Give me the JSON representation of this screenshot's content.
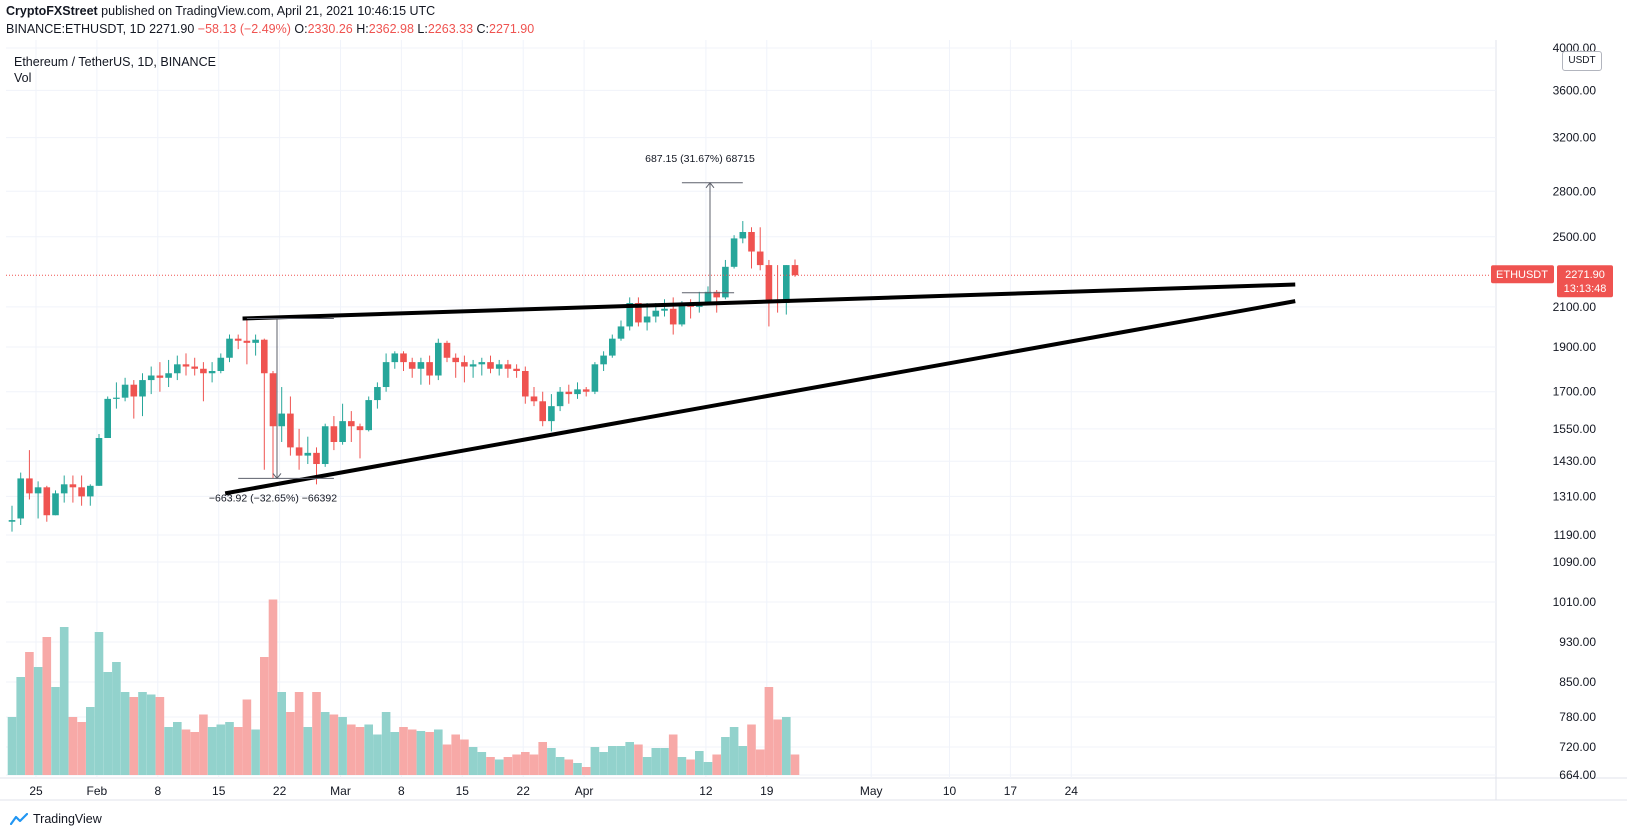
{
  "header": {
    "publisher": "CryptoFXStreet",
    "published_text": "published on TradingView.com, April 21, 2021 10:46:15 UTC",
    "symbol_line": "BINANCE:ETHUSDT, 1D",
    "last": "2271.90",
    "change": "−58.13 (−2.49%)",
    "o_label": "O:",
    "o": "2330.26",
    "h_label": "H:",
    "h": "2362.98",
    "l_label": "L:",
    "l": "2263.33",
    "c_label": "C:",
    "c": "2271.90"
  },
  "legend": {
    "title": "Ethereum / TetherUS, 1D, BINANCE",
    "volume_label": "Vol"
  },
  "currency_badge": "USDT",
  "price_tag": {
    "symbol": "ETHUSDT",
    "price": "2271.90",
    "countdown": "13:13:48"
  },
  "footer": {
    "brand": "TradingView"
  },
  "colors": {
    "up": "#26a69a",
    "down": "#ef5350",
    "vol_up": "#92d2cc",
    "vol_down": "#f7a9a7",
    "trendline": "#000000",
    "grid": "#f0f3fa"
  },
  "chart_data": {
    "type": "candlestick",
    "title": "Ethereum / TetherUS, 1D, BINANCE",
    "scale": "log",
    "price_axis_ticks": [
      664,
      720,
      780,
      850,
      930,
      1010,
      1090,
      1190,
      1310,
      1430,
      1550,
      1700,
      1900,
      2100,
      2500,
      2800,
      3200,
      3600,
      4000
    ],
    "price_axis_labels": [
      "664.00",
      "720.00",
      "780.00",
      "850.00",
      "930.00",
      "1010.00",
      "1090.00",
      "1190.00",
      "1310.00",
      "1430.00",
      "1550.00",
      "1700.00",
      "1900.00",
      "2100.00",
      "2500.00",
      "2800.00",
      "3200.00",
      "3600.00",
      "4000.00"
    ],
    "time_axis_labels": [
      "25",
      "Feb",
      "8",
      "15",
      "22",
      "Mar",
      "8",
      "15",
      "22",
      "Apr",
      "12",
      "19",
      "May",
      "10",
      "17",
      "24"
    ],
    "time_axis_indices": [
      0,
      7,
      14,
      21,
      28,
      35,
      42,
      49,
      56,
      63,
      77,
      84,
      96,
      105,
      112,
      119
    ],
    "candles": [
      {
        "date": "2021-01-24",
        "o": 1230,
        "h": 1280,
        "l": 1200,
        "c": 1235,
        "v": 780
      },
      {
        "date": "2021-01-25",
        "o": 1240,
        "h": 1390,
        "l": 1220,
        "c": 1370,
        "v": 860
      },
      {
        "date": "2021-01-26",
        "o": 1370,
        "h": 1470,
        "l": 1300,
        "c": 1320,
        "v": 910
      },
      {
        "date": "2021-01-27",
        "o": 1320,
        "h": 1360,
        "l": 1240,
        "c": 1340,
        "v": 880
      },
      {
        "date": "2021-01-28",
        "o": 1340,
        "h": 1345,
        "l": 1230,
        "c": 1250,
        "v": 940
      },
      {
        "date": "2021-01-29",
        "o": 1250,
        "h": 1330,
        "l": 1250,
        "c": 1320,
        "v": 840
      },
      {
        "date": "2021-01-30",
        "o": 1320,
        "h": 1380,
        "l": 1290,
        "c": 1350,
        "v": 960
      },
      {
        "date": "2021-01-31",
        "o": 1350,
        "h": 1380,
        "l": 1290,
        "c": 1340,
        "v": 780
      },
      {
        "date": "2021-02-01",
        "o": 1340,
        "h": 1380,
        "l": 1280,
        "c": 1310,
        "v": 770
      },
      {
        "date": "2021-02-02",
        "o": 1310,
        "h": 1350,
        "l": 1280,
        "c": 1345,
        "v": 800
      },
      {
        "date": "2021-02-03",
        "o": 1345,
        "h": 1530,
        "l": 1345,
        "c": 1515,
        "v": 950
      },
      {
        "date": "2021-02-04",
        "o": 1515,
        "h": 1680,
        "l": 1515,
        "c": 1670,
        "v": 870
      },
      {
        "date": "2021-02-05",
        "o": 1670,
        "h": 1740,
        "l": 1630,
        "c": 1675,
        "v": 890
      },
      {
        "date": "2021-02-06",
        "o": 1675,
        "h": 1760,
        "l": 1660,
        "c": 1730,
        "v": 830
      },
      {
        "date": "2021-02-07",
        "o": 1730,
        "h": 1750,
        "l": 1590,
        "c": 1680,
        "v": 820
      },
      {
        "date": "2021-02-08",
        "o": 1680,
        "h": 1780,
        "l": 1600,
        "c": 1750,
        "v": 830
      },
      {
        "date": "2021-02-09",
        "o": 1750,
        "h": 1810,
        "l": 1690,
        "c": 1770,
        "v": 825
      },
      {
        "date": "2021-02-10",
        "o": 1770,
        "h": 1830,
        "l": 1700,
        "c": 1760,
        "v": 820
      },
      {
        "date": "2021-02-11",
        "o": 1760,
        "h": 1840,
        "l": 1720,
        "c": 1780,
        "v": 760
      },
      {
        "date": "2021-02-12",
        "o": 1780,
        "h": 1860,
        "l": 1750,
        "c": 1820,
        "v": 770
      },
      {
        "date": "2021-02-13",
        "o": 1820,
        "h": 1870,
        "l": 1770,
        "c": 1810,
        "v": 755
      },
      {
        "date": "2021-02-14",
        "o": 1810,
        "h": 1850,
        "l": 1770,
        "c": 1800,
        "v": 750
      },
      {
        "date": "2021-02-15",
        "o": 1800,
        "h": 1830,
        "l": 1660,
        "c": 1780,
        "v": 785
      },
      {
        "date": "2021-02-16",
        "o": 1780,
        "h": 1830,
        "l": 1740,
        "c": 1790,
        "v": 760
      },
      {
        "date": "2021-02-17",
        "o": 1790,
        "h": 1870,
        "l": 1780,
        "c": 1850,
        "v": 765
      },
      {
        "date": "2021-02-18",
        "o": 1850,
        "h": 1960,
        "l": 1830,
        "c": 1940,
        "v": 770
      },
      {
        "date": "2021-02-19",
        "o": 1940,
        "h": 1960,
        "l": 1890,
        "c": 1930,
        "v": 760
      },
      {
        "date": "2021-02-20",
        "o": 1930,
        "h": 2040,
        "l": 1820,
        "c": 1920,
        "v": 815
      },
      {
        "date": "2021-02-21",
        "o": 1920,
        "h": 1960,
        "l": 1860,
        "c": 1935,
        "v": 755
      },
      {
        "date": "2021-02-22",
        "o": 1935,
        "h": 1940,
        "l": 1400,
        "c": 1780,
        "v": 900
      },
      {
        "date": "2021-02-23",
        "o": 1780,
        "h": 1790,
        "l": 1370,
        "c": 1560,
        "v": 1015
      },
      {
        "date": "2021-02-24",
        "o": 1560,
        "h": 1720,
        "l": 1500,
        "c": 1610,
        "v": 830
      },
      {
        "date": "2021-02-25",
        "o": 1610,
        "h": 1680,
        "l": 1450,
        "c": 1480,
        "v": 790
      },
      {
        "date": "2021-02-26",
        "o": 1480,
        "h": 1550,
        "l": 1400,
        "c": 1450,
        "v": 830
      },
      {
        "date": "2021-02-27",
        "o": 1450,
        "h": 1520,
        "l": 1420,
        "c": 1460,
        "v": 760
      },
      {
        "date": "2021-02-28",
        "o": 1460,
        "h": 1480,
        "l": 1350,
        "c": 1420,
        "v": 830
      },
      {
        "date": "2021-03-01",
        "o": 1420,
        "h": 1570,
        "l": 1410,
        "c": 1560,
        "v": 790
      },
      {
        "date": "2021-03-02",
        "o": 1560,
        "h": 1600,
        "l": 1470,
        "c": 1500,
        "v": 785
      },
      {
        "date": "2021-03-03",
        "o": 1500,
        "h": 1650,
        "l": 1490,
        "c": 1580,
        "v": 780
      },
      {
        "date": "2021-03-04",
        "o": 1580,
        "h": 1620,
        "l": 1500,
        "c": 1560,
        "v": 765
      },
      {
        "date": "2021-03-05",
        "o": 1560,
        "h": 1570,
        "l": 1440,
        "c": 1545,
        "v": 760
      },
      {
        "date": "2021-03-06",
        "o": 1545,
        "h": 1680,
        "l": 1540,
        "c": 1665,
        "v": 765
      },
      {
        "date": "2021-03-07",
        "o": 1665,
        "h": 1740,
        "l": 1630,
        "c": 1720,
        "v": 745
      },
      {
        "date": "2021-03-08",
        "o": 1720,
        "h": 1870,
        "l": 1700,
        "c": 1830,
        "v": 790
      },
      {
        "date": "2021-03-09",
        "o": 1830,
        "h": 1880,
        "l": 1800,
        "c": 1870,
        "v": 750
      },
      {
        "date": "2021-03-10",
        "o": 1870,
        "h": 1880,
        "l": 1790,
        "c": 1830,
        "v": 760
      },
      {
        "date": "2021-03-11",
        "o": 1830,
        "h": 1850,
        "l": 1760,
        "c": 1800,
        "v": 755
      },
      {
        "date": "2021-03-12",
        "o": 1800,
        "h": 1850,
        "l": 1730,
        "c": 1830,
        "v": 752
      },
      {
        "date": "2021-03-13",
        "o": 1830,
        "h": 1860,
        "l": 1730,
        "c": 1770,
        "v": 750
      },
      {
        "date": "2021-03-14",
        "o": 1770,
        "h": 1940,
        "l": 1750,
        "c": 1920,
        "v": 755
      },
      {
        "date": "2021-03-15",
        "o": 1920,
        "h": 1930,
        "l": 1830,
        "c": 1850,
        "v": 725
      },
      {
        "date": "2021-03-16",
        "o": 1850,
        "h": 1870,
        "l": 1760,
        "c": 1830,
        "v": 745
      },
      {
        "date": "2021-03-17",
        "o": 1830,
        "h": 1860,
        "l": 1740,
        "c": 1810,
        "v": 735
      },
      {
        "date": "2021-03-18",
        "o": 1810,
        "h": 1840,
        "l": 1760,
        "c": 1820,
        "v": 720
      },
      {
        "date": "2021-03-19",
        "o": 1820,
        "h": 1850,
        "l": 1770,
        "c": 1830,
        "v": 710
      },
      {
        "date": "2021-03-20",
        "o": 1830,
        "h": 1860,
        "l": 1780,
        "c": 1800,
        "v": 700
      },
      {
        "date": "2021-03-21",
        "o": 1800,
        "h": 1840,
        "l": 1770,
        "c": 1820,
        "v": 695
      },
      {
        "date": "2021-03-22",
        "o": 1820,
        "h": 1840,
        "l": 1760,
        "c": 1800,
        "v": 700
      },
      {
        "date": "2021-03-23",
        "o": 1800,
        "h": 1820,
        "l": 1760,
        "c": 1790,
        "v": 705
      },
      {
        "date": "2021-03-24",
        "o": 1790,
        "h": 1810,
        "l": 1650,
        "c": 1680,
        "v": 710
      },
      {
        "date": "2021-03-25",
        "o": 1680,
        "h": 1720,
        "l": 1640,
        "c": 1660,
        "v": 705
      },
      {
        "date": "2021-03-26",
        "o": 1660,
        "h": 1700,
        "l": 1560,
        "c": 1580,
        "v": 730
      },
      {
        "date": "2021-03-27",
        "o": 1580,
        "h": 1690,
        "l": 1540,
        "c": 1640,
        "v": 718
      },
      {
        "date": "2021-03-28",
        "o": 1640,
        "h": 1720,
        "l": 1620,
        "c": 1700,
        "v": 700
      },
      {
        "date": "2021-03-29",
        "o": 1700,
        "h": 1730,
        "l": 1650,
        "c": 1690,
        "v": 695
      },
      {
        "date": "2021-03-30",
        "o": 1690,
        "h": 1740,
        "l": 1670,
        "c": 1710,
        "v": 688
      },
      {
        "date": "2021-03-31",
        "o": 1710,
        "h": 1720,
        "l": 1680,
        "c": 1700,
        "v": 680
      },
      {
        "date": "2021-04-01",
        "o": 1700,
        "h": 1830,
        "l": 1690,
        "c": 1820,
        "v": 720
      },
      {
        "date": "2021-04-02",
        "o": 1820,
        "h": 1880,
        "l": 1790,
        "c": 1860,
        "v": 710
      },
      {
        "date": "2021-04-03",
        "o": 1860,
        "h": 1960,
        "l": 1850,
        "c": 1940,
        "v": 722
      },
      {
        "date": "2021-04-04",
        "o": 1940,
        "h": 2030,
        "l": 1930,
        "c": 2000,
        "v": 722
      },
      {
        "date": "2021-04-05",
        "o": 2000,
        "h": 2150,
        "l": 1980,
        "c": 2120,
        "v": 730
      },
      {
        "date": "2021-04-06",
        "o": 2120,
        "h": 2150,
        "l": 2000,
        "c": 2020,
        "v": 725
      },
      {
        "date": "2021-04-07",
        "o": 2020,
        "h": 2120,
        "l": 1980,
        "c": 2050,
        "v": 700
      },
      {
        "date": "2021-04-08",
        "o": 2050,
        "h": 2120,
        "l": 2020,
        "c": 2080,
        "v": 718
      },
      {
        "date": "2021-04-09",
        "o": 2080,
        "h": 2140,
        "l": 2050,
        "c": 2090,
        "v": 718
      },
      {
        "date": "2021-04-10",
        "o": 2090,
        "h": 2150,
        "l": 1960,
        "c": 2010,
        "v": 745
      },
      {
        "date": "2021-04-11",
        "o": 2010,
        "h": 2130,
        "l": 2000,
        "c": 2110,
        "v": 700
      },
      {
        "date": "2021-04-12",
        "o": 2110,
        "h": 2140,
        "l": 2040,
        "c": 2100,
        "v": 695
      },
      {
        "date": "2021-04-13",
        "o": 2100,
        "h": 2180,
        "l": 2070,
        "c": 2110,
        "v": 712
      },
      {
        "date": "2021-04-14",
        "o": 2110,
        "h": 2210,
        "l": 2110,
        "c": 2180,
        "v": 690
      },
      {
        "date": "2021-04-15",
        "o": 2180,
        "h": 2190,
        "l": 2070,
        "c": 2150,
        "v": 705
      },
      {
        "date": "2021-04-16",
        "o": 2150,
        "h": 2360,
        "l": 2140,
        "c": 2320,
        "v": 740
      },
      {
        "date": "2021-04-17",
        "o": 2320,
        "h": 2510,
        "l": 2310,
        "c": 2490,
        "v": 760
      },
      {
        "date": "2021-04-18",
        "o": 2490,
        "h": 2600,
        "l": 2460,
        "c": 2530,
        "v": 722
      },
      {
        "date": "2021-04-19",
        "o": 2530,
        "h": 2560,
        "l": 2310,
        "c": 2410,
        "v": 765
      },
      {
        "date": "2021-04-20",
        "o": 2410,
        "h": 2560,
        "l": 2300,
        "c": 2330,
        "v": 715
      },
      {
        "date": "2021-04-21",
        "o": 2330,
        "h": 2360,
        "l": 2000,
        "c": 2130,
        "v": 840
      },
      {
        "date": "2021-04-22",
        "o": 2130,
        "h": 2330,
        "l": 2070,
        "c": 2120,
        "v": 775
      },
      {
        "date": "2021-04-23",
        "o": 2120,
        "h": 2330,
        "l": 2060,
        "c": 2330,
        "v": 780
      },
      {
        "date": "2021-04-24",
        "o": 2330,
        "h": 2363,
        "l": 2263,
        "c": 2271.9,
        "v": 705
      }
    ],
    "annotations": [
      {
        "text": "−663.92 (−32.65%) −66392"
      },
      {
        "text": "687.15 (31.67%) 68715"
      }
    ]
  }
}
